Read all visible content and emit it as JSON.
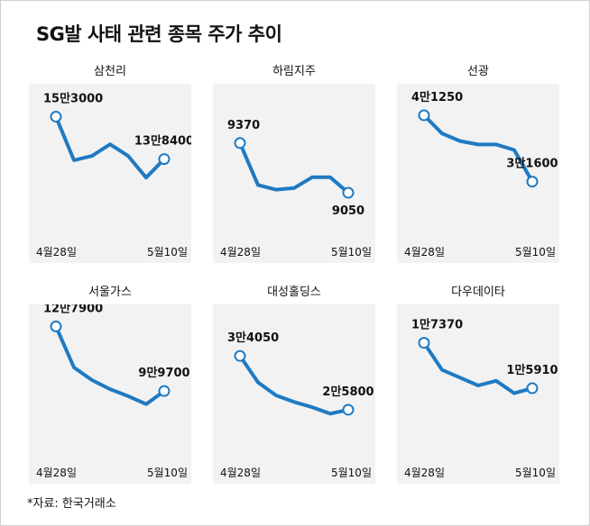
{
  "title": "SG발 사태 관련 종목 주가 추이",
  "footnote": "*자료: 한국거래소",
  "colors": {
    "line": "#1f7ac2",
    "panel_bg": "#f2f2f2",
    "header_bg": "#ffffff"
  },
  "chart_data": [
    {
      "type": "line",
      "title": "삼천리",
      "x": [
        "4월28일",
        "",
        "",
        "",
        "",
        "",
        "5월10일"
      ],
      "xtick_labels": [
        "4월28일",
        "5월10일"
      ],
      "values": [
        153000,
        138000,
        139500,
        143500,
        139500,
        132000,
        138400
      ],
      "start_label": "15만3000",
      "end_label": "13만8400",
      "ylim": [
        115000,
        160000
      ]
    },
    {
      "type": "line",
      "title": "하림지주",
      "x": [
        "4월28일",
        "",
        "",
        "",
        "",
        "",
        "5월10일"
      ],
      "xtick_labels": [
        "4월28일",
        "5월10일"
      ],
      "values": [
        9370,
        9100,
        9070,
        9080,
        9150,
        9150,
        9050
      ],
      "start_label": "9370",
      "end_label": "9050",
      "ylim": [
        8830,
        9670
      ]
    },
    {
      "type": "line",
      "title": "선광",
      "x": [
        "4월28일",
        "",
        "",
        "",
        "",
        "",
        "5월10일"
      ],
      "xtick_labels": [
        "4월28일",
        "5월10일"
      ],
      "values": [
        41250,
        38600,
        37500,
        37000,
        37000,
        36200,
        31600
      ],
      "start_label": "4만1250",
      "end_label": "3만1600",
      "ylim": [
        25000,
        44000
      ]
    },
    {
      "type": "line",
      "title": "서울가스",
      "x": [
        "4월28일",
        "",
        "",
        "",
        "",
        "",
        "5월10일"
      ],
      "xtick_labels": [
        "4월28일",
        "5월10일"
      ],
      "values": [
        127900,
        110000,
        104500,
        100500,
        97500,
        94000,
        99700
      ],
      "start_label": "12만7900",
      "end_label": "9만9700",
      "ylim": [
        75000,
        132000
      ]
    },
    {
      "type": "line",
      "title": "대성홀딩스",
      "x": [
        "4월28일",
        "",
        "",
        "",
        "",
        "",
        "5월10일"
      ],
      "xtick_labels": [
        "4월28일",
        "5월10일"
      ],
      "values": [
        34050,
        30000,
        28000,
        27000,
        26200,
        25200,
        25800
      ],
      "start_label": "3만4050",
      "end_label": "2만5800",
      "ylim": [
        20000,
        40000
      ]
    },
    {
      "type": "line",
      "title": "다우데이타",
      "x": [
        "4월28일",
        "",
        "",
        "",
        "",
        "",
        "5월10일"
      ],
      "xtick_labels": [
        "4월28일",
        "5월10일"
      ],
      "values": [
        17370,
        16500,
        16250,
        16000,
        16150,
        15750,
        15910
      ],
      "start_label": "1만7370",
      "end_label": "1만5910",
      "ylim": [
        14000,
        18200
      ]
    }
  ]
}
